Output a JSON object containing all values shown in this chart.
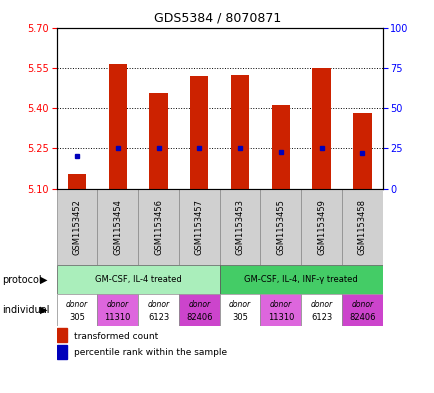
{
  "title": "GDS5384 / 8070871",
  "samples": [
    "GSM1153452",
    "GSM1153454",
    "GSM1153456",
    "GSM1153457",
    "GSM1153453",
    "GSM1153455",
    "GSM1153459",
    "GSM1153458"
  ],
  "bar_values": [
    5.155,
    5.565,
    5.455,
    5.52,
    5.525,
    5.41,
    5.55,
    5.38
  ],
  "percentile_values": [
    20,
    25,
    25,
    25,
    25,
    23,
    25,
    22
  ],
  "ylim_left": [
    5.1,
    5.7
  ],
  "ylim_right": [
    0,
    100
  ],
  "yticks_left": [
    5.1,
    5.25,
    5.4,
    5.55,
    5.7
  ],
  "yticks_right": [
    0,
    25,
    50,
    75,
    100
  ],
  "bar_color": "#cc2200",
  "dot_color": "#0000bb",
  "plot_bg_color": "#ffffff",
  "sample_label_bg": "#d0d0d0",
  "protocols": [
    {
      "label": "GM-CSF, IL-4 treated",
      "start": 0,
      "end": 4,
      "color": "#aaeebb"
    },
    {
      "label": "GM-CSF, IL-4, INF-γ treated",
      "start": 4,
      "end": 8,
      "color": "#44cc66"
    }
  ],
  "individuals": [
    {
      "label": "donor\n305",
      "color": "#ffffff"
    },
    {
      "label": "donor\n11310",
      "color": "#dd66dd"
    },
    {
      "label": "donor\n6123",
      "color": "#ffffff"
    },
    {
      "label": "donor\n82406",
      "color": "#cc44cc"
    },
    {
      "label": "donor\n305",
      "color": "#ffffff"
    },
    {
      "label": "donor\n11310",
      "color": "#dd66dd"
    },
    {
      "label": "donor\n6123",
      "color": "#ffffff"
    },
    {
      "label": "donor\n82406",
      "color": "#cc44cc"
    }
  ],
  "legend_items": [
    {
      "label": "transformed count",
      "color": "#cc2200"
    },
    {
      "label": "percentile rank within the sample",
      "color": "#0000bb"
    }
  ],
  "figsize": [
    4.35,
    3.93
  ],
  "dpi": 100
}
